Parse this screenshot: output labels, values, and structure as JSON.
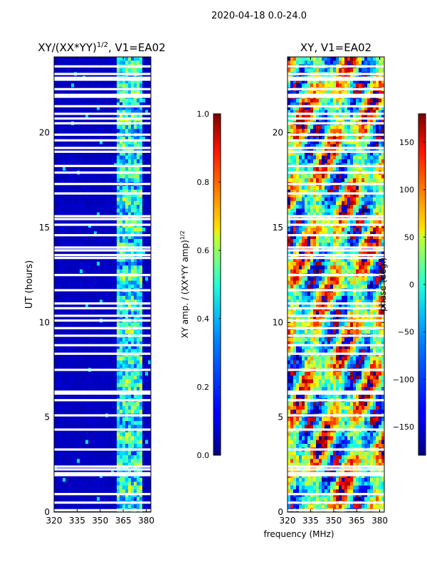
{
  "figure": {
    "suptitle": "2020-04-18 0.0-24.0",
    "xlabel": "frequency (MHz)"
  },
  "chart_data": [
    {
      "type": "heatmap",
      "title": "XY/(XX*YY)",
      "title_suffix": ", V1=EA02",
      "title_superscript": "1/2",
      "xlabel": "",
      "ylabel": "UT (hours)",
      "xlim": [
        320,
        383
      ],
      "ylim": [
        0,
        24
      ],
      "xticks": [
        320,
        335,
        350,
        365,
        380
      ],
      "yticks": [
        0,
        5,
        10,
        15,
        20
      ],
      "colormap": "jet",
      "colorbar": {
        "label": "XY amp. / (XX*YY amp)",
        "label_superscript": "1/2",
        "range": [
          0.0,
          1.0
        ],
        "ticks": [
          "0.0",
          "0.2",
          "0.4",
          "0.6",
          "0.8",
          "1.0"
        ]
      },
      "background_value": 0.05,
      "bright_band_mhz": [
        360.5,
        377.5
      ],
      "bright_band_value": 0.35,
      "flagged_hours": [
        0.1,
        0.5,
        0.95,
        1.95,
        2.05,
        2.25,
        2.4,
        3.3,
        4.35,
        5.1,
        5.9,
        6.25,
        6.35,
        7.5,
        8.35,
        8.8,
        9.3,
        9.7,
        10.1,
        10.35,
        10.75,
        11.0,
        11.7,
        12.5,
        13.4,
        13.55,
        13.8,
        13.95,
        14.6,
        15.15,
        15.45,
        15.6,
        16.8,
        17.3,
        17.9,
        18.25,
        19.0,
        19.2,
        19.6,
        19.9,
        20.5,
        20.75,
        21.0,
        21.4,
        21.9,
        22.0,
        22.3,
        22.8,
        22.9,
        23.1,
        23.5
      ]
    },
    {
      "type": "heatmap",
      "title": "XY, V1=EA02",
      "xlabel": "",
      "ylabel": "",
      "xlim": [
        320,
        383
      ],
      "ylim": [
        0,
        24
      ],
      "xticks": [
        320,
        335,
        350,
        365,
        380
      ],
      "yticks": [
        0,
        5,
        10,
        15,
        20
      ],
      "colormap": "jet",
      "colorbar": {
        "label": "phase (deg.)",
        "range": [
          -180,
          180
        ],
        "ticks": [
          "−150",
          "−100",
          "−50",
          "0",
          "50",
          "100",
          "150"
        ],
        "tick_values": [
          -150,
          -100,
          -50,
          0,
          50,
          100,
          150
        ]
      },
      "flagged_hours": [
        0.1,
        0.5,
        0.95,
        1.95,
        2.05,
        2.25,
        2.4,
        3.3,
        4.35,
        5.1,
        5.9,
        6.25,
        6.35,
        7.5,
        8.35,
        8.8,
        9.3,
        9.7,
        10.1,
        10.35,
        10.75,
        11.0,
        11.7,
        12.5,
        13.4,
        13.55,
        13.8,
        13.95,
        14.6,
        15.15,
        15.45,
        15.6,
        16.8,
        17.3,
        17.9,
        18.25,
        19.0,
        19.2,
        19.6,
        19.9,
        20.5,
        20.75,
        21.0,
        21.4,
        21.9,
        22.0,
        22.3,
        22.8,
        22.9,
        23.1,
        23.5
      ]
    }
  ]
}
